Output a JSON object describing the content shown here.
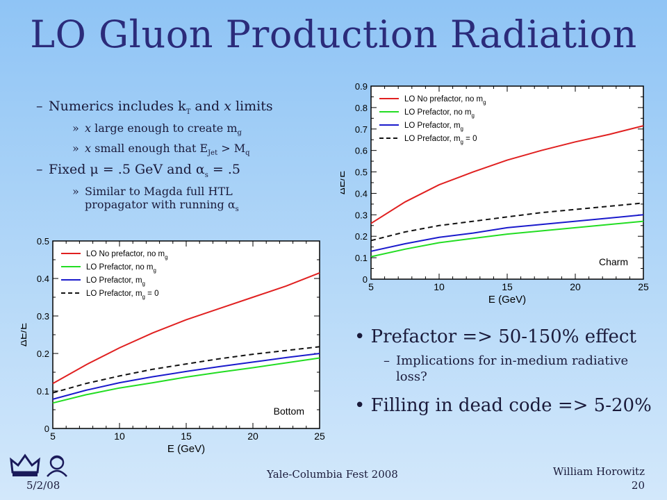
{
  "title": "LO Gluon Production Radiation",
  "bullets": {
    "b1_a": "Numerics includes k",
    "b1_a_sub": "T",
    "b1_b": " and ",
    "b1_x": "x",
    "b1_c": " limits",
    "b2_1_x": "x",
    "b2_1_text": " large enough to create m",
    "b2_1_sub": "g",
    "b2_2_x": "x",
    "b2_2_text": " small enough that E",
    "b2_2_sub": "Jet",
    "b2_2_mid": " > M",
    "b2_2_sub2": "q",
    "b3_a": "Fixed ",
    "b3_mu": "μ",
    "b3_b": " = .5 GeV and ",
    "b3_alpha": "α",
    "b3_alpha_sub": "s",
    "b3_c": " = .5",
    "b4_text": "Similar to Magda full HTL propagator with running ",
    "b4_alpha": "α",
    "b4_sub": "s",
    "dash": "–",
    "raquo": "»"
  },
  "big_bullets": {
    "p1": "• Prefactor => 50-150% effect",
    "p1_sub": "Implications for in-medium radiative loss?",
    "p2": "• Filling in dead code => 5-20%",
    "dash": "–"
  },
  "footer": {
    "date": "5/2/08",
    "event": "Yale-Columbia Fest 2008",
    "author": "William Horowitz",
    "page": "20"
  },
  "chart_data": [
    {
      "type": "line",
      "annotation": "Charm",
      "xlabel": "E (GeV)",
      "ylabel": "ΔE/E",
      "xlim": [
        5,
        25
      ],
      "ylim": [
        0,
        0.9
      ],
      "xticks": [
        5,
        10,
        15,
        20,
        25
      ],
      "yticks": [
        0,
        0.1,
        0.2,
        0.3,
        0.4,
        0.5,
        0.6,
        0.7,
        0.8,
        0.9
      ],
      "legend_position": "top-left",
      "x": [
        5,
        7.5,
        10,
        12.5,
        15,
        17.5,
        20,
        22.5,
        25
      ],
      "series": [
        {
          "name": "LO No prefactor, no m_g",
          "color": "#e02020",
          "dash": false,
          "values": [
            0.26,
            0.36,
            0.44,
            0.5,
            0.555,
            0.6,
            0.64,
            0.675,
            0.715
          ]
        },
        {
          "name": "LO Prefactor, no m_g",
          "color": "#22dd22",
          "dash": false,
          "values": [
            0.105,
            0.14,
            0.17,
            0.19,
            0.21,
            0.225,
            0.24,
            0.255,
            0.27
          ]
        },
        {
          "name": "LO Prefactor, m_g",
          "color": "#1a1acc",
          "dash": false,
          "values": [
            0.13,
            0.165,
            0.195,
            0.215,
            0.24,
            0.255,
            0.27,
            0.285,
            0.3
          ]
        },
        {
          "name": "LO Prefactor, m_g = 0",
          "color": "#111111",
          "dash": true,
          "values": [
            0.18,
            0.22,
            0.25,
            0.27,
            0.29,
            0.31,
            0.325,
            0.34,
            0.355
          ]
        }
      ]
    },
    {
      "type": "line",
      "annotation": "Bottom",
      "xlabel": "E (GeV)",
      "ylabel": "ΔE/E",
      "xlim": [
        5,
        25
      ],
      "ylim": [
        0,
        0.5
      ],
      "xticks": [
        5,
        10,
        15,
        20,
        25
      ],
      "yticks": [
        0,
        0.1,
        0.2,
        0.3,
        0.4,
        0.5
      ],
      "legend_position": "top-left",
      "x": [
        5,
        7.5,
        10,
        12.5,
        15,
        17.5,
        20,
        22.5,
        25
      ],
      "series": [
        {
          "name": "LO No prefactor, no m_g",
          "color": "#e02020",
          "dash": false,
          "values": [
            0.12,
            0.17,
            0.215,
            0.255,
            0.29,
            0.32,
            0.35,
            0.38,
            0.415
          ]
        },
        {
          "name": "LO Prefactor, no m_g",
          "color": "#22dd22",
          "dash": false,
          "values": [
            0.068,
            0.09,
            0.108,
            0.122,
            0.137,
            0.15,
            0.162,
            0.175,
            0.188
          ]
        },
        {
          "name": "LO Prefactor, m_g",
          "color": "#1a1acc",
          "dash": false,
          "values": [
            0.078,
            0.102,
            0.122,
            0.138,
            0.152,
            0.165,
            0.177,
            0.189,
            0.2
          ]
        },
        {
          "name": "LO Prefactor, m_g = 0",
          "color": "#111111",
          "dash": true,
          "values": [
            0.095,
            0.12,
            0.14,
            0.158,
            0.172,
            0.186,
            0.198,
            0.208,
            0.218
          ]
        }
      ]
    }
  ]
}
